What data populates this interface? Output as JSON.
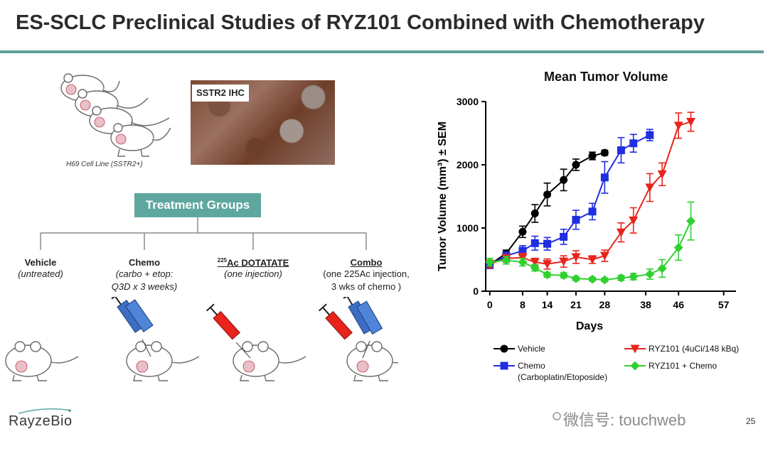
{
  "slide": {
    "title": "ES-SCLC Preclinical Studies of RYZ101 Combined with Chemotherapy",
    "micrograph_label": "SSTR2 IHC",
    "cell_line": "H69 Cell Line (SSTR2+)",
    "treatment_groups_label": "Treatment Groups",
    "page_number": "25",
    "logo_text": "RayzeBio",
    "watermark": "微信号: touchweb"
  },
  "groups": [
    {
      "name": "Vehicle",
      "desc": [
        "(untreated)"
      ]
    },
    {
      "name": "Chemo",
      "desc": [
        "(carbo + etop:",
        "Q3D x 3 weeks)"
      ]
    },
    {
      "name_sup": "225",
      "name": "Ac DOTATATE",
      "desc": [
        "(one injection)"
      ]
    },
    {
      "name": "Combo",
      "desc": [
        "(one 225Ac injection,",
        "3 wks of chemo )"
      ]
    }
  ],
  "colors": {
    "accent": "#5ea79f",
    "vehicle": "#000000",
    "chemo": "#1f2fe0",
    "ryz101": "#e8241c",
    "combo": "#2fd02f"
  },
  "chart_data": {
    "type": "line",
    "title": "Mean Tumor Volume",
    "xlabel": "Days",
    "ylabel": "Tumor Volume (mm³) ± SEM",
    "xticks": [
      0,
      8,
      14,
      21,
      28,
      38,
      46,
      57
    ],
    "xlim": [
      -1,
      60
    ],
    "yticks": [
      0,
      1000,
      2000,
      3000
    ],
    "ylim": [
      0,
      3000
    ],
    "series": [
      {
        "name": "Vehicle",
        "color": "#000000",
        "marker": "circle",
        "x": [
          0,
          4,
          8,
          11,
          14,
          18,
          21,
          25,
          28
        ],
        "y": [
          420,
          600,
          940,
          1230,
          1530,
          1760,
          2000,
          2140,
          2190
        ],
        "err": [
          60,
          50,
          90,
          140,
          180,
          170,
          90,
          60,
          40
        ]
      },
      {
        "name": "Chemo (Carboplatin/Etoposide)",
        "color": "#1f2fe0",
        "marker": "square",
        "x": [
          0,
          4,
          8,
          11,
          14,
          18,
          21,
          25,
          28,
          32,
          35,
          39
        ],
        "y": [
          420,
          560,
          640,
          760,
          750,
          860,
          1130,
          1260,
          1800,
          2230,
          2340,
          2470
        ],
        "err": [
          60,
          60,
          80,
          110,
          100,
          120,
          150,
          130,
          250,
          200,
          140,
          90
        ]
      },
      {
        "name": "RYZ101 (4uCi/148 kBq)",
        "color": "#e8241c",
        "marker": "triangle-down",
        "x": [
          0,
          4,
          8,
          11,
          14,
          18,
          21,
          25,
          28,
          32,
          35,
          39,
          42,
          46,
          49
        ],
        "y": [
          430,
          520,
          530,
          460,
          430,
          470,
          540,
          500,
          560,
          930,
          1120,
          1640,
          1850,
          2620,
          2680
        ],
        "err": [
          60,
          60,
          70,
          60,
          80,
          90,
          100,
          60,
          90,
          150,
          200,
          220,
          180,
          200,
          150
        ]
      },
      {
        "name": "RYZ101 + Chemo",
        "color": "#2fd02f",
        "marker": "diamond",
        "x": [
          0,
          4,
          8,
          11,
          14,
          18,
          21,
          25,
          28,
          32,
          35,
          39,
          42,
          46,
          49
        ],
        "y": [
          460,
          490,
          460,
          370,
          260,
          250,
          200,
          190,
          180,
          210,
          230,
          270,
          360,
          690,
          1110
        ],
        "err": [
          60,
          60,
          60,
          50,
          40,
          40,
          30,
          30,
          30,
          40,
          50,
          80,
          140,
          200,
          300
        ]
      }
    ],
    "legend": [
      {
        "label_lines": [
          "Vehicle"
        ],
        "color": "#000000",
        "marker": "circle"
      },
      {
        "label_lines": [
          "RYZ101 (4uCi/148 kBq)"
        ],
        "color": "#e8241c",
        "marker": "triangle-down"
      },
      {
        "label_lines": [
          "Chemo",
          "(Carboplatin/Etoposide)"
        ],
        "color": "#1f2fe0",
        "marker": "square"
      },
      {
        "label_lines": [
          "RYZ101 + Chemo"
        ],
        "color": "#2fd02f",
        "marker": "diamond"
      }
    ],
    "legend_position": "bottom",
    "grid": false
  }
}
